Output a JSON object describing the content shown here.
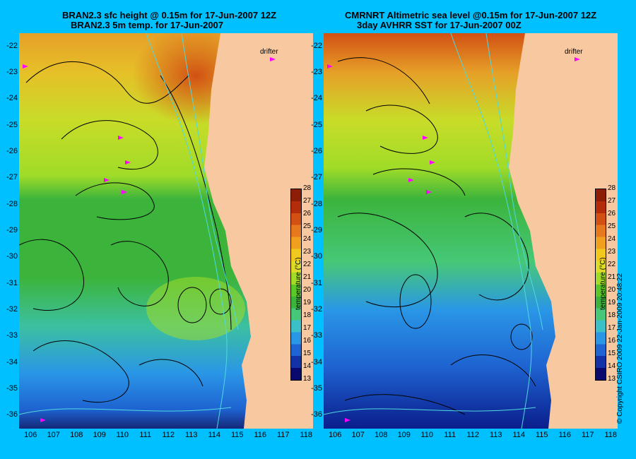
{
  "left_panel": {
    "title_line1": "BRAN2.3 sfc height @ 0.15m for 17-Jun-2007 12Z",
    "title_line2": "BRAN2.3 5m temp. for 17-Jun-2007",
    "drifter_label": "drifter",
    "colorbar_label": "temperature (°C)"
  },
  "right_panel": {
    "title_line1": "CMRNRT Altimetric sea level  @0.15m  for 17-Jun-2007 12Z",
    "title_line2": "3day AVHRR SST for 17-Jun-2007 00Z",
    "drifter_label": "drifter",
    "colorbar_label": "temperature (°C)"
  },
  "copyright": "© Copyright CSIRO 2009   22-Jan-2009 20:48:22",
  "axes": {
    "lat_labels": [
      "-22",
      "-23",
      "-24",
      "-25",
      "-26",
      "-27",
      "-28",
      "-29",
      "-30",
      "-31",
      "-32",
      "-33",
      "-34",
      "-35",
      "-36"
    ],
    "lon_labels": [
      "106",
      "107",
      "108",
      "109",
      "110",
      "111",
      "112",
      "113",
      "114",
      "115",
      "116",
      "117",
      "118"
    ],
    "lat_range": [
      -36.5,
      -21.5
    ],
    "lon_range": [
      105.5,
      118.3
    ]
  },
  "colorbar": {
    "ticks": [
      "28",
      "27",
      "26",
      "25",
      "24",
      "23",
      "22",
      "21",
      "20",
      "19",
      "18",
      "17",
      "16",
      "15",
      "14",
      "13"
    ],
    "range": [
      13,
      28
    ],
    "colors": [
      "#0a0a6e",
      "#1432a8",
      "#1e64d2",
      "#2a96e6",
      "#3cc0c8",
      "#46c878",
      "#3cb43c",
      "#5ac828",
      "#a0dc28",
      "#dcdc28",
      "#f0c81e",
      "#f0a01e",
      "#e6781e",
      "#d25014",
      "#b42d0a",
      "#8c1e08"
    ]
  },
  "map_colors": {
    "land": "#f8c8a0",
    "contour": "#000000",
    "bathymetry": "#50d8e0",
    "drifter": "#ff00ff"
  }
}
